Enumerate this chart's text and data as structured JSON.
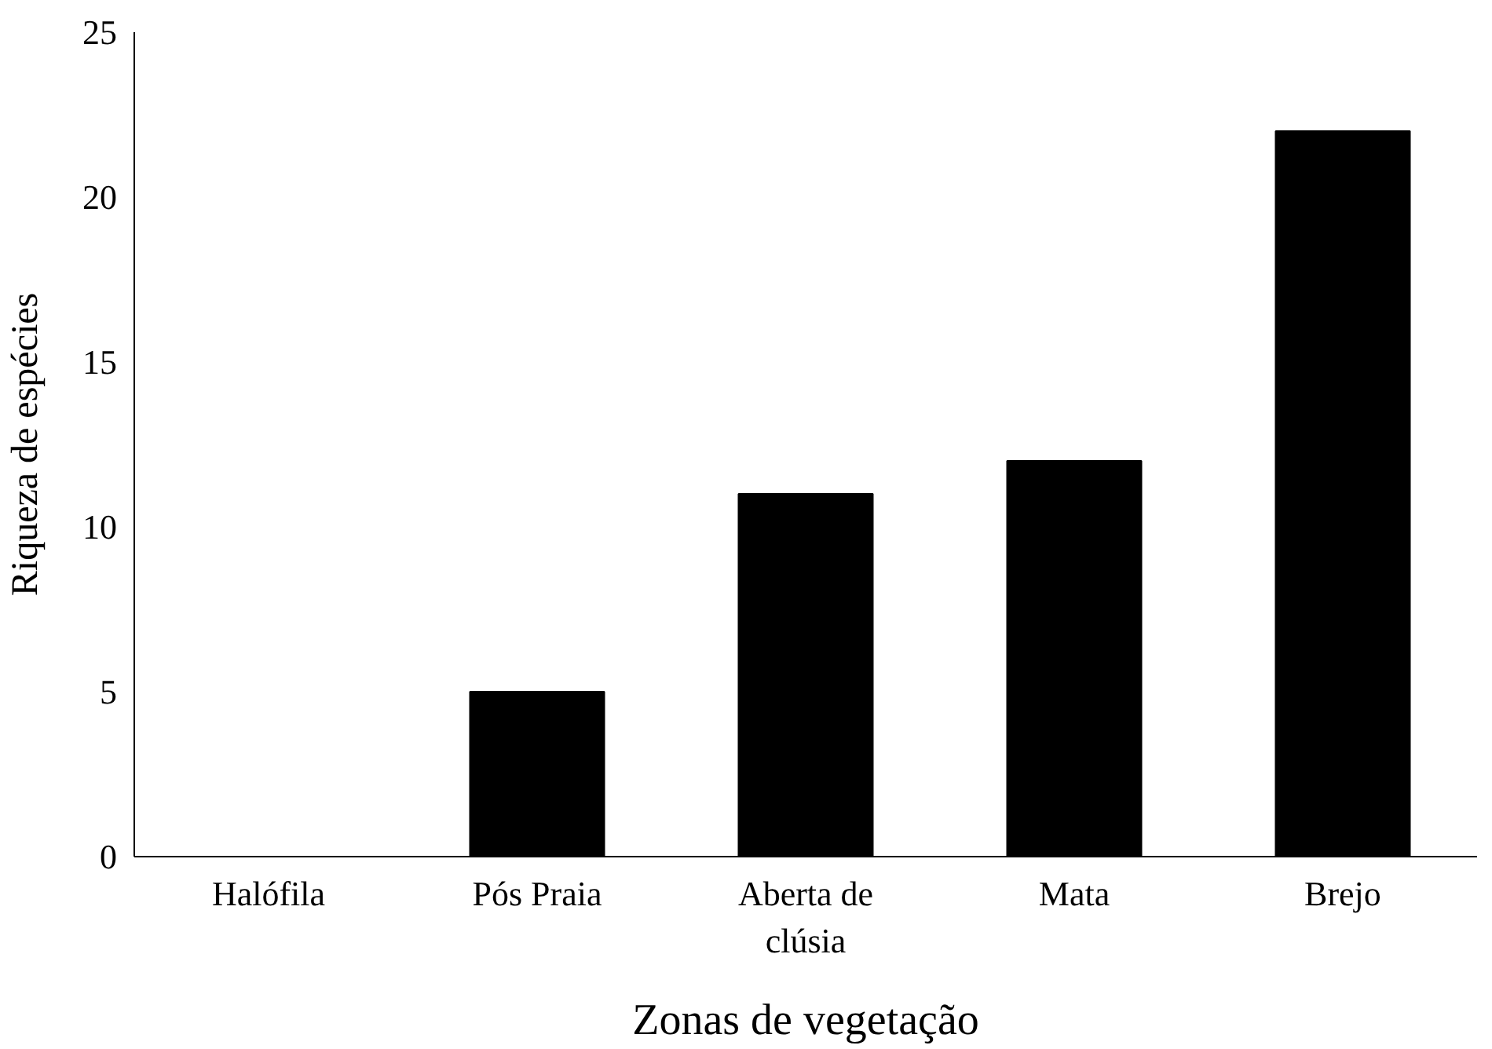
{
  "chart_data": {
    "type": "bar",
    "xlabel": "Zonas de vegetação",
    "ylabel": "Riqueza de espécies",
    "categories": [
      "Halófila",
      "Pós Praia",
      "Aberta de clúsia",
      "Mata",
      "Brejo"
    ],
    "values": [
      0,
      5,
      11,
      12,
      22
    ],
    "color": "#000000",
    "ylim": [
      0,
      25
    ],
    "yticks": [
      0,
      5,
      10,
      15,
      20,
      25
    ],
    "grid": false
  }
}
